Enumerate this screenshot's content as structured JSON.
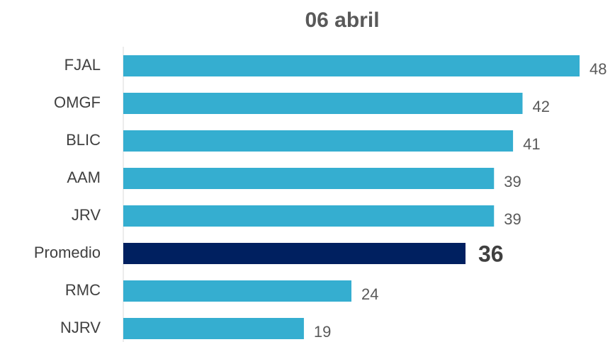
{
  "chart_data": {
    "type": "bar",
    "orientation": "horizontal",
    "title": "06 abril",
    "categories": [
      "FJAL",
      "OMGF",
      "BLIC",
      "AAM",
      "JRV",
      "Promedio",
      "RMC",
      "NJRV"
    ],
    "values": [
      48,
      42,
      41,
      39,
      39,
      36,
      24,
      19
    ],
    "color": "#35aed0",
    "colors": [
      "#35aed0",
      "#35aed0",
      "#35aed0",
      "#35aed0",
      "#35aed0",
      "#002060",
      "#35aed0",
      "#35aed0"
    ],
    "xlim": [
      0,
      48
    ]
  }
}
